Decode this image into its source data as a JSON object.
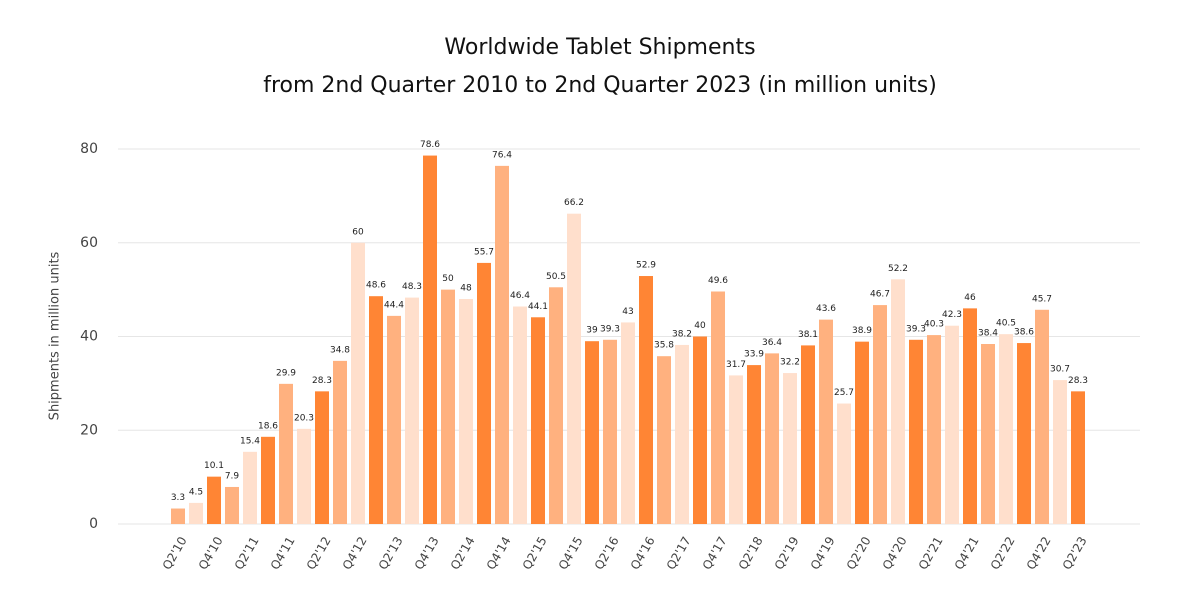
{
  "chart_data": {
    "type": "bar",
    "title": "Worldwide Tablet Shipments",
    "subtitle": "from 2nd Quarter 2010 to 2nd Quarter 2023 (in million units)",
    "y_label": "Shipments in million units",
    "categories": [
      "Q2'10",
      null,
      "Q4'10",
      null,
      "Q2'11",
      null,
      "Q4'11",
      null,
      "Q2'12",
      null,
      "Q4'12",
      null,
      "Q2'13",
      null,
      "Q4'13",
      null,
      "Q2'14",
      null,
      "Q4'14",
      null,
      "Q2'15",
      null,
      "Q4'15",
      null,
      "Q2'16",
      null,
      "Q4'16",
      null,
      "Q2'17",
      null,
      "Q4'17",
      null,
      "Q2'18",
      null,
      "Q2'19",
      null,
      "Q4'19",
      null,
      "Q2'20",
      null,
      "Q4'20",
      null,
      "Q2'21",
      null,
      "Q4'21",
      null,
      "Q2'22",
      null,
      "Q4'22",
      null,
      "Q2'23"
    ],
    "values": [
      3.3,
      4.5,
      10.1,
      7.9,
      15.4,
      18.6,
      29.9,
      20.3,
      28.3,
      34.8,
      60,
      48.6,
      44.4,
      48.3,
      78.6,
      50,
      48,
      55.7,
      76.4,
      46.4,
      44.1,
      50.5,
      66.2,
      39,
      39.3,
      43,
      52.9,
      35.8,
      38.2,
      40,
      49.6,
      31.7,
      33.9,
      36.4,
      32.2,
      38.1,
      43.6,
      25.7,
      38.9,
      46.7,
      52.2,
      39.3,
      40.3,
      42.3,
      46,
      38.4,
      40.5,
      38.6,
      45.7,
      30.7,
      28.3
    ],
    "colors": [
      "#ffb17f",
      "#ffdfcc",
      "#ff8534"
    ],
    "ylim": [
      0,
      80
    ],
    "yticks": [
      0,
      20,
      40,
      60,
      80
    ],
    "grid": true
  }
}
